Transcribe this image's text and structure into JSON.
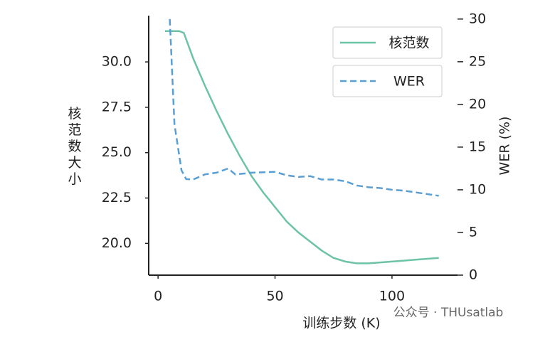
{
  "chart_data": {
    "type": "line",
    "x_label": "训练步数 (K)",
    "y_label": "核范数大小",
    "y2_label": "WER (%)",
    "watermark": "公众号 · THUsatlab",
    "xlim": [
      -4,
      128
    ],
    "xticks": [
      0,
      50,
      100
    ],
    "ylim": [
      18.25,
      32.55
    ],
    "yticks": [
      {
        "value": 20,
        "label": "20.0"
      },
      {
        "value": 22.5,
        "label": "22.5"
      },
      {
        "value": 25,
        "label": "25.0"
      },
      {
        "value": 27.5,
        "label": "27.5"
      },
      {
        "value": 30,
        "label": "30.0"
      }
    ],
    "y2lim": [
      0,
      30.4
    ],
    "y2ticks": [
      0,
      5,
      10,
      15,
      20,
      25,
      30
    ],
    "series": [
      {
        "name": "核范数",
        "color": "#6cc4a4",
        "dash": false,
        "axis": "y",
        "x": [
          3,
          6,
          9,
          11,
          15,
          20,
          25,
          30,
          35,
          40,
          45,
          50,
          55,
          60,
          65,
          70,
          75,
          80,
          85,
          90,
          95,
          100,
          105,
          110,
          115,
          120
        ],
        "values": [
          31.7,
          31.7,
          31.7,
          31.6,
          30.2,
          28.7,
          27.3,
          26.0,
          24.8,
          23.7,
          22.8,
          22.0,
          21.2,
          20.6,
          20.1,
          19.6,
          19.2,
          19.0,
          18.9,
          18.9,
          18.95,
          19.0,
          19.05,
          19.1,
          19.15,
          19.2
        ]
      },
      {
        "name": "WER",
        "color": "#5a9fd4",
        "dash": true,
        "axis": "y2",
        "x": [
          5,
          7,
          10,
          12,
          15,
          20,
          25,
          30,
          33,
          40,
          50,
          55,
          60,
          65,
          70,
          75,
          80,
          85,
          90,
          95,
          100,
          105,
          110,
          115,
          120
        ],
        "values": [
          30,
          17.7,
          12.3,
          11.25,
          11.2,
          11.8,
          12.0,
          12.5,
          11.8,
          12.0,
          12.1,
          11.7,
          11.5,
          11.6,
          11.2,
          11.2,
          11.0,
          10.5,
          10.3,
          10.2,
          10.0,
          9.9,
          9.7,
          9.5,
          9.3
        ]
      }
    ]
  }
}
